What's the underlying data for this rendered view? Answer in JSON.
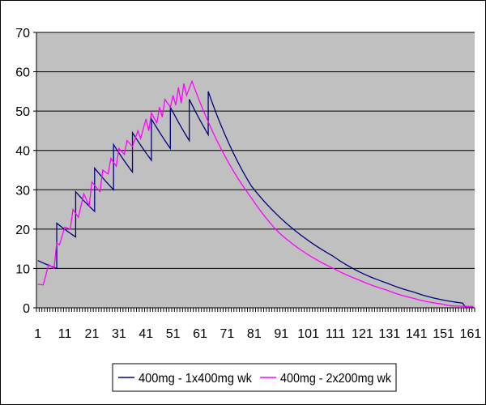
{
  "chart_data": {
    "type": "line",
    "title": "",
    "xlabel": "",
    "ylabel": "",
    "x_range": [
      1,
      162
    ],
    "x_tick_labels": [
      "1",
      "11",
      "21",
      "31",
      "41",
      "51",
      "61",
      "71",
      "81",
      "91",
      "101",
      "111",
      "121",
      "131",
      "141",
      "151",
      "161"
    ],
    "ylim": [
      0,
      70
    ],
    "y_tick_labels": [
      "0",
      "10",
      "20",
      "30",
      "40",
      "50",
      "60",
      "70"
    ],
    "grid": "horizontal",
    "plot_background": "#c0c0c0",
    "legend_position": "bottom",
    "series": [
      {
        "name": "400mg - 1x400mg wk",
        "color": "#000080",
        "decay_factor": 0.9549,
        "points": [
          [
            1,
            12
          ],
          [
            8,
            10
          ],
          [
            8,
            21.5
          ],
          [
            15,
            18
          ],
          [
            15,
            29.5
          ],
          [
            22,
            24.5
          ],
          [
            22,
            35.5
          ],
          [
            29,
            30
          ],
          [
            29,
            41.5
          ],
          [
            36,
            34.5
          ],
          [
            36,
            44.5
          ],
          [
            43,
            37.5
          ],
          [
            43,
            48
          ],
          [
            50,
            40.5
          ],
          [
            50,
            51
          ],
          [
            57,
            42.5
          ],
          [
            57,
            53
          ],
          [
            64,
            44
          ],
          [
            64,
            55
          ],
          [
            80,
            30.9
          ],
          [
            90,
            23.3
          ],
          [
            100,
            17.6
          ],
          [
            110,
            13.2
          ],
          [
            120,
            9.1
          ],
          [
            130,
            6.3
          ],
          [
            140,
            4.0
          ],
          [
            150,
            2.1
          ],
          [
            158,
            1.2
          ],
          [
            159,
            0.3
          ],
          [
            162,
            0.3
          ]
        ]
      },
      {
        "name": "400mg - 2x200mg wk",
        "color": "#ff00ff",
        "decay_factor": 0.9504,
        "points": [
          [
            1,
            6
          ],
          [
            3,
            5.8
          ],
          [
            5,
            11
          ],
          [
            7,
            10
          ],
          [
            8,
            16.5
          ],
          [
            9,
            16
          ],
          [
            11,
            20.5
          ],
          [
            13,
            20
          ],
          [
            14,
            25
          ],
          [
            16,
            23
          ],
          [
            18,
            29
          ],
          [
            20,
            26
          ],
          [
            21,
            32
          ],
          [
            24,
            29.5
          ],
          [
            25,
            35
          ],
          [
            27,
            34
          ],
          [
            28,
            38
          ],
          [
            30,
            36
          ],
          [
            31,
            40.5
          ],
          [
            33,
            39
          ],
          [
            34,
            42.5
          ],
          [
            36,
            41
          ],
          [
            38,
            45
          ],
          [
            39,
            43
          ],
          [
            41,
            48
          ],
          [
            42,
            45
          ],
          [
            43,
            49.5
          ],
          [
            45,
            47
          ],
          [
            46,
            51
          ],
          [
            47,
            48.5
          ],
          [
            48,
            53
          ],
          [
            50,
            51
          ],
          [
            51,
            54
          ],
          [
            52,
            51.5
          ],
          [
            53,
            56
          ],
          [
            54,
            52
          ],
          [
            55,
            57
          ],
          [
            56,
            54
          ],
          [
            58,
            57.6
          ],
          [
            80,
            27.9
          ],
          [
            90,
            19.2
          ],
          [
            100,
            13.9
          ],
          [
            110,
            10.1
          ],
          [
            120,
            7.0
          ],
          [
            130,
            4.5
          ],
          [
            140,
            2.4
          ],
          [
            150,
            1.0
          ],
          [
            154,
            0.5
          ],
          [
            162,
            0.3
          ]
        ]
      }
    ]
  }
}
